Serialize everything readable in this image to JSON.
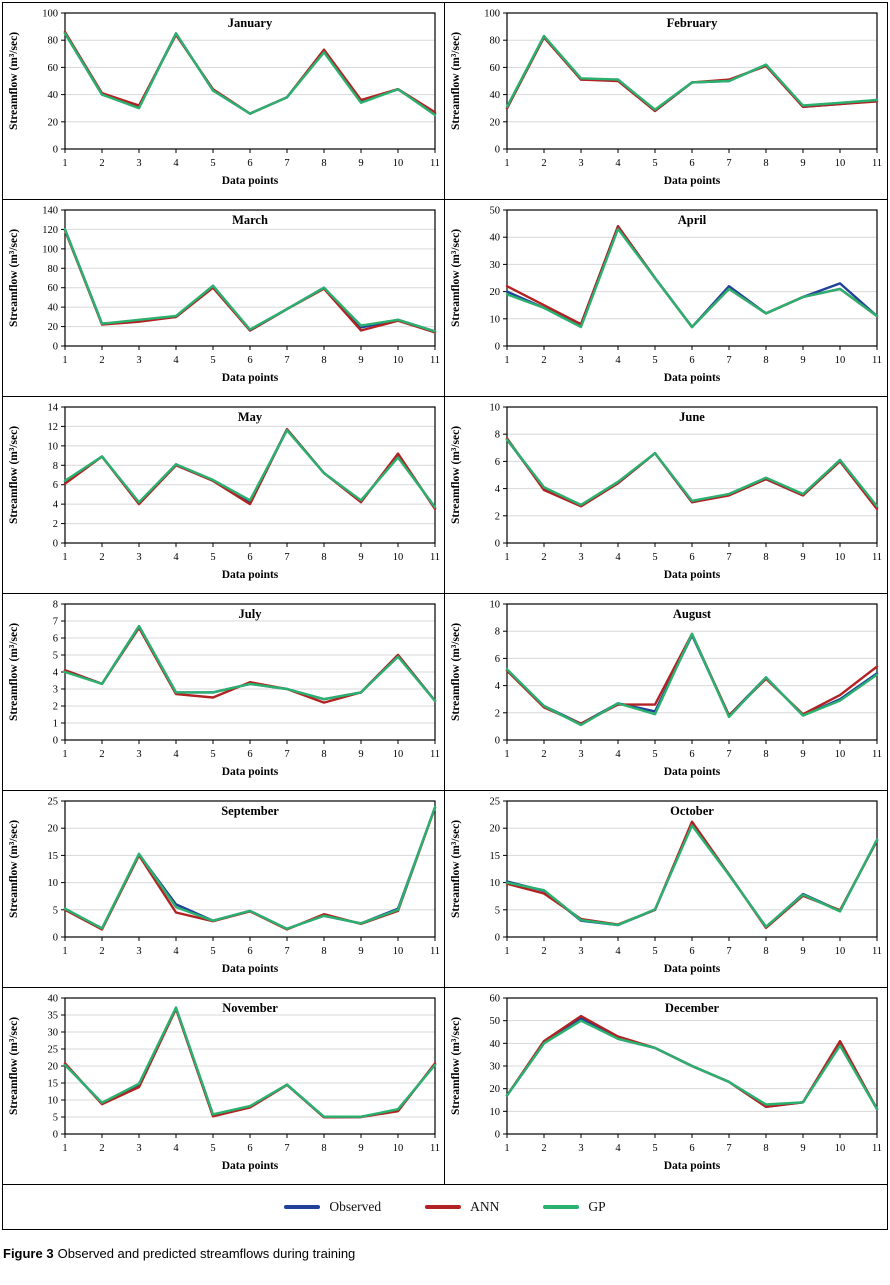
{
  "figure": {
    "caption_label": "Figure 3",
    "caption_text": "Observed and predicted streamflows during training"
  },
  "legend": [
    {
      "label": "Observed",
      "color": "#1f419b"
    },
    {
      "label": "ANN",
      "color": "#b22222"
    },
    {
      "label": "GP",
      "color": "#2ab06f"
    }
  ],
  "chart_data": [
    {
      "type": "line",
      "title": "January",
      "xlabel": "Data points",
      "ylabel": "Streamflow (m³/sec)",
      "x": [
        1,
        2,
        3,
        4,
        5,
        6,
        7,
        8,
        9,
        10,
        11
      ],
      "ylim": [
        0,
        100
      ],
      "ytick_step": 20,
      "grid": true,
      "legend_position": "bottom",
      "series": [
        {
          "name": "Observed",
          "values": [
            85,
            40,
            31,
            85,
            43,
            26,
            38,
            72,
            35,
            44,
            26
          ]
        },
        {
          "name": "ANN",
          "values": [
            86,
            41,
            32,
            84,
            44,
            26,
            38,
            73,
            36,
            44,
            27
          ]
        },
        {
          "name": "GP",
          "values": [
            85,
            40,
            30,
            85,
            43,
            26,
            38,
            71,
            34,
            44,
            25
          ]
        }
      ]
    },
    {
      "type": "line",
      "title": "February",
      "xlabel": "Data points",
      "ylabel": "Streamflow (m³/sec)",
      "x": [
        1,
        2,
        3,
        4,
        5,
        6,
        7,
        8,
        9,
        10,
        11
      ],
      "ylim": [
        0,
        100
      ],
      "ytick_step": 20,
      "grid": true,
      "legend_position": "bottom",
      "series": [
        {
          "name": "Observed",
          "values": [
            30,
            83,
            51,
            51,
            28,
            49,
            50,
            62,
            31,
            33,
            36
          ]
        },
        {
          "name": "ANN",
          "values": [
            30,
            82,
            51,
            50,
            28,
            49,
            51,
            61,
            31,
            33,
            35
          ]
        },
        {
          "name": "GP",
          "values": [
            31,
            83,
            52,
            51,
            29,
            49,
            50,
            62,
            32,
            34,
            36
          ]
        }
      ]
    },
    {
      "type": "line",
      "title": "March",
      "xlabel": "Data points",
      "ylabel": "Streamflow (m³/sec)",
      "x": [
        1,
        2,
        3,
        4,
        5,
        6,
        7,
        8,
        9,
        10,
        11
      ],
      "ylim": [
        0,
        140
      ],
      "ytick_step": 20,
      "grid": true,
      "legend_position": "bottom",
      "series": [
        {
          "name": "Observed",
          "values": [
            120,
            23,
            26,
            30,
            62,
            16,
            38,
            60,
            19,
            27,
            15
          ]
        },
        {
          "name": "ANN",
          "values": [
            119,
            22,
            25,
            30,
            60,
            16,
            38,
            59,
            16,
            26,
            14
          ]
        },
        {
          "name": "GP",
          "values": [
            120,
            23,
            27,
            31,
            62,
            17,
            38,
            60,
            21,
            27,
            15
          ]
        }
      ]
    },
    {
      "type": "line",
      "title": "April",
      "xlabel": "Data points",
      "ylabel": "Streamflow (m³/sec)",
      "x": [
        1,
        2,
        3,
        4,
        5,
        6,
        7,
        8,
        9,
        10,
        11
      ],
      "ylim": [
        0,
        50
      ],
      "ytick_step": 10,
      "grid": true,
      "legend_position": "bottom",
      "series": [
        {
          "name": "Observed",
          "values": [
            20,
            14,
            8,
            44,
            25,
            7,
            22,
            12,
            18,
            23,
            11
          ]
        },
        {
          "name": "ANN",
          "values": [
            22,
            15,
            8,
            44,
            25,
            7,
            21,
            12,
            18,
            21,
            11
          ]
        },
        {
          "name": "GP",
          "values": [
            19,
            14,
            7,
            43,
            25,
            7,
            21,
            12,
            18,
            21,
            11
          ]
        }
      ]
    },
    {
      "type": "line",
      "title": "May",
      "xlabel": "Data points",
      "ylabel": "Streamflow (m³/sec)",
      "x": [
        1,
        2,
        3,
        4,
        5,
        6,
        7,
        8,
        9,
        10,
        11
      ],
      "ylim": [
        0,
        14
      ],
      "ytick_step": 2,
      "grid": true,
      "legend_position": "bottom",
      "series": [
        {
          "name": "Observed",
          "values": [
            6.3,
            8.9,
            4.1,
            8.1,
            6.4,
            4.2,
            11.7,
            7.2,
            4.3,
            9.0,
            3.6
          ]
        },
        {
          "name": "ANN",
          "values": [
            6.1,
            8.9,
            4.0,
            8.0,
            6.4,
            4.0,
            11.7,
            7.2,
            4.2,
            9.2,
            3.5
          ]
        },
        {
          "name": "GP",
          "values": [
            6.4,
            8.9,
            4.2,
            8.1,
            6.5,
            4.4,
            11.6,
            7.2,
            4.4,
            8.8,
            3.7
          ]
        }
      ]
    },
    {
      "type": "line",
      "title": "June",
      "xlabel": "Data points",
      "ylabel": "Streamflow (m³/sec)",
      "x": [
        1,
        2,
        3,
        4,
        5,
        6,
        7,
        8,
        9,
        10,
        11
      ],
      "ylim": [
        0,
        10
      ],
      "ytick_step": 2,
      "grid": true,
      "legend_position": "bottom",
      "series": [
        {
          "name": "Observed",
          "values": [
            7.6,
            4.0,
            2.8,
            4.4,
            6.6,
            3.0,
            3.6,
            4.7,
            3.5,
            6.1,
            2.6
          ]
        },
        {
          "name": "ANN",
          "values": [
            7.7,
            3.9,
            2.7,
            4.4,
            6.6,
            3.0,
            3.5,
            4.7,
            3.5,
            6.0,
            2.5
          ]
        },
        {
          "name": "GP",
          "values": [
            7.6,
            4.1,
            2.8,
            4.5,
            6.6,
            3.1,
            3.6,
            4.8,
            3.6,
            6.1,
            2.7
          ]
        }
      ]
    },
    {
      "type": "line",
      "title": "July",
      "xlabel": "Data points",
      "ylabel": "Streamflow (m³/sec)",
      "x": [
        1,
        2,
        3,
        4,
        5,
        6,
        7,
        8,
        9,
        10,
        11
      ],
      "ylim": [
        0,
        8
      ],
      "ytick_step": 1,
      "grid": true,
      "legend_position": "bottom",
      "series": [
        {
          "name": "Observed",
          "values": [
            4.1,
            3.3,
            6.7,
            2.8,
            2.8,
            3.3,
            3.0,
            2.4,
            2.8,
            5.0,
            2.3
          ]
        },
        {
          "name": "ANN",
          "values": [
            4.1,
            3.3,
            6.6,
            2.7,
            2.5,
            3.4,
            3.0,
            2.2,
            2.8,
            5.0,
            2.3
          ]
        },
        {
          "name": "GP",
          "values": [
            4.0,
            3.3,
            6.7,
            2.8,
            2.8,
            3.3,
            3.0,
            2.4,
            2.8,
            4.9,
            2.3
          ]
        }
      ]
    },
    {
      "type": "line",
      "title": "August",
      "xlabel": "Data points",
      "ylabel": "Streamflow (m³/sec)",
      "x": [
        1,
        2,
        3,
        4,
        5,
        6,
        7,
        8,
        9,
        10,
        11
      ],
      "ylim": [
        0,
        10
      ],
      "ytick_step": 2,
      "grid": true,
      "legend_position": "bottom",
      "series": [
        {
          "name": "Observed",
          "values": [
            5.1,
            2.5,
            1.2,
            2.7,
            2.1,
            7.7,
            1.8,
            4.6,
            1.8,
            3.0,
            4.9
          ]
        },
        {
          "name": "ANN",
          "values": [
            5.1,
            2.4,
            1.2,
            2.6,
            2.6,
            7.8,
            1.8,
            4.5,
            1.9,
            3.3,
            5.4
          ]
        },
        {
          "name": "GP",
          "values": [
            5.2,
            2.5,
            1.1,
            2.7,
            1.9,
            7.8,
            1.7,
            4.6,
            1.8,
            2.9,
            4.8
          ]
        }
      ]
    },
    {
      "type": "line",
      "title": "September",
      "xlabel": "Data points",
      "ylabel": "Streamflow (m³/sec)",
      "x": [
        1,
        2,
        3,
        4,
        5,
        6,
        7,
        8,
        9,
        10,
        11
      ],
      "ylim": [
        0,
        25
      ],
      "ytick_step": 5,
      "grid": true,
      "legend_position": "bottom",
      "series": [
        {
          "name": "Observed",
          "values": [
            5.2,
            1.5,
            15.2,
            6.0,
            3.0,
            4.8,
            1.5,
            3.9,
            2.5,
            5.2,
            23.8
          ]
        },
        {
          "name": "ANN",
          "values": [
            5.0,
            1.4,
            15.0,
            4.5,
            2.9,
            4.7,
            1.4,
            4.2,
            2.4,
            4.8,
            23.8
          ]
        },
        {
          "name": "GP",
          "values": [
            5.2,
            1.6,
            15.3,
            5.5,
            3.0,
            4.8,
            1.5,
            3.9,
            2.5,
            5.0,
            23.9
          ]
        }
      ]
    },
    {
      "type": "line",
      "title": "October",
      "xlabel": "Data points",
      "ylabel": "Streamflow (m³/sec)",
      "x": [
        1,
        2,
        3,
        4,
        5,
        6,
        7,
        8,
        9,
        10,
        11
      ],
      "ylim": [
        0,
        25
      ],
      "ytick_step": 5,
      "grid": true,
      "legend_position": "bottom",
      "series": [
        {
          "name": "Observed",
          "values": [
            10.2,
            8.5,
            3.0,
            2.2,
            5.0,
            20.7,
            11.5,
            1.8,
            7.9,
            4.8,
            17.8
          ]
        },
        {
          "name": "ANN",
          "values": [
            9.8,
            8.0,
            3.3,
            2.3,
            5.0,
            21.2,
            11.5,
            1.7,
            7.6,
            4.9,
            17.7
          ]
        },
        {
          "name": "GP",
          "values": [
            10.0,
            8.6,
            3.1,
            2.2,
            5.1,
            20.5,
            11.4,
            1.9,
            7.8,
            4.7,
            17.9
          ]
        }
      ]
    },
    {
      "type": "line",
      "title": "November",
      "xlabel": "Data points",
      "ylabel": "Streamflow (m³/sec)",
      "x": [
        1,
        2,
        3,
        4,
        5,
        6,
        7,
        8,
        9,
        10,
        11
      ],
      "ylim": [
        0,
        40
      ],
      "ytick_step": 5,
      "grid": true,
      "legend_position": "bottom",
      "series": [
        {
          "name": "Observed",
          "values": [
            20.5,
            9.0,
            14.5,
            37.0,
            5.5,
            8.0,
            14.5,
            5.0,
            5.0,
            7.0,
            20.5
          ]
        },
        {
          "name": "ANN",
          "values": [
            20.8,
            8.8,
            13.8,
            36.8,
            5.2,
            7.8,
            14.4,
            4.9,
            5.0,
            6.7,
            20.8
          ]
        },
        {
          "name": "GP",
          "values": [
            20.3,
            9.2,
            14.8,
            37.2,
            5.8,
            8.2,
            14.5,
            5.1,
            5.1,
            7.3,
            20.3
          ]
        }
      ]
    },
    {
      "type": "line",
      "title": "December",
      "xlabel": "Data points",
      "ylabel": "Streamflow (m³/sec)",
      "x": [
        1,
        2,
        3,
        4,
        5,
        6,
        7,
        8,
        9,
        10,
        11
      ],
      "ylim": [
        0,
        60
      ],
      "ytick_step": 10,
      "grid": true,
      "legend_position": "bottom",
      "series": [
        {
          "name": "Observed",
          "values": [
            17,
            40,
            51,
            42,
            38,
            30,
            23,
            12,
            14,
            40,
            11
          ]
        },
        {
          "name": "ANN",
          "values": [
            17,
            41,
            52,
            43,
            38,
            30,
            23,
            12,
            14,
            41,
            11
          ]
        },
        {
          "name": "GP",
          "values": [
            17,
            40,
            50,
            42,
            38,
            30,
            23,
            13,
            14,
            39,
            11
          ]
        }
      ]
    }
  ]
}
